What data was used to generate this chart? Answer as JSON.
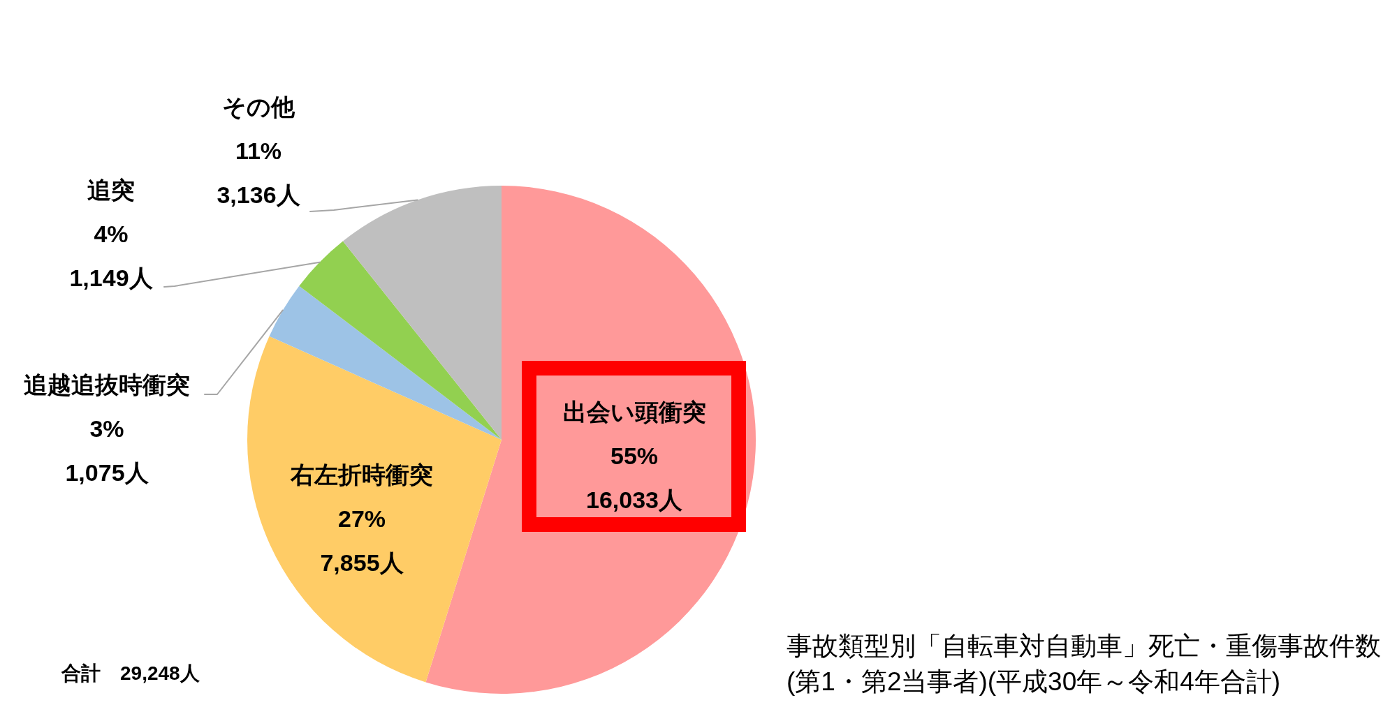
{
  "chart_data": {
    "type": "pie",
    "title": "事故類型別「自転車対自動車」死亡・重傷事故件数",
    "subtitle": "(第1・第2当事者)(平成30年～令和4年合計)",
    "categories": [
      "出会い頭衝突",
      "右左折時衝突",
      "追越追抜時衝突",
      "追突",
      "その他"
    ],
    "values": [
      16033,
      7855,
      1075,
      1149,
      3136
    ],
    "colors": [
      "#ff9999",
      "#ffcc66",
      "#9dc3e6",
      "#92d050",
      "#bfbfbf"
    ],
    "value_labels": [
      "55%\n16,033人",
      "27%\n7,855人",
      "3%\n1,075人",
      "4%\n1,149人",
      "11%\n3,136人"
    ],
    "annotations": [
      "合計　29,248人"
    ]
  }
}
